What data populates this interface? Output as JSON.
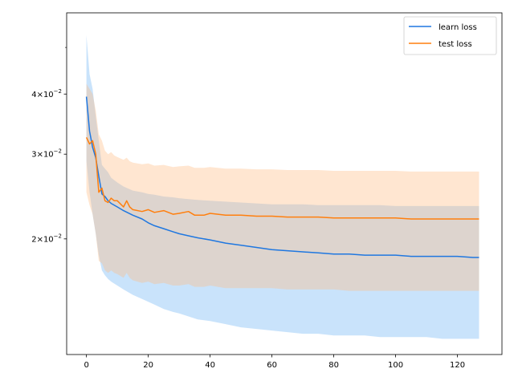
{
  "chart_data": {
    "type": "line",
    "title": "",
    "xlabel": "",
    "ylabel": "",
    "xlim": [
      -6.4,
      134.4
    ],
    "ylim": [
      0.0115,
      0.059
    ],
    "yscale": "log",
    "grid": false,
    "legend_position": "top-right",
    "x_ticks": [
      {
        "value": 0,
        "label": "0"
      },
      {
        "value": 20,
        "label": "20"
      },
      {
        "value": 40,
        "label": "40"
      },
      {
        "value": 60,
        "label": "60"
      },
      {
        "value": 80,
        "label": "80"
      },
      {
        "value": 100,
        "label": "100"
      },
      {
        "value": 120,
        "label": "120"
      }
    ],
    "y_ticks": [
      {
        "value": 0.02,
        "base": "2",
        "exp": "−2"
      },
      {
        "value": 0.03,
        "base": "3",
        "exp": "−2"
      },
      {
        "value": 0.04,
        "base": "4",
        "exp": "−2"
      }
    ],
    "y_minor_ticks": [
      0.05
    ],
    "series": [
      {
        "name": "learn loss",
        "color": "#1f77e0",
        "band_color": "#87c0f7",
        "x": [
          0,
          1,
          2,
          3,
          4,
          5,
          6,
          7,
          8,
          10,
          12,
          15,
          18,
          20,
          22,
          25,
          28,
          30,
          33,
          36,
          40,
          45,
          50,
          55,
          60,
          65,
          70,
          75,
          80,
          85,
          90,
          95,
          100,
          105,
          110,
          115,
          120,
          125,
          127
        ],
        "values": [
          0.0395,
          0.0335,
          0.031,
          0.0295,
          0.027,
          0.0248,
          0.0245,
          0.024,
          0.0237,
          0.0233,
          0.0229,
          0.0224,
          0.022,
          0.0216,
          0.0213,
          0.021,
          0.0207,
          0.0205,
          0.0203,
          0.0201,
          0.0199,
          0.0196,
          0.0194,
          0.0192,
          0.019,
          0.0189,
          0.0188,
          0.0187,
          0.0186,
          0.0186,
          0.0185,
          0.0185,
          0.0185,
          0.0184,
          0.0184,
          0.0184,
          0.0184,
          0.0183,
          0.0183
        ],
        "upper": [
          0.053,
          0.044,
          0.041,
          0.036,
          0.032,
          0.0285,
          0.028,
          0.0275,
          0.0268,
          0.0262,
          0.0257,
          0.0252,
          0.025,
          0.0248,
          0.0247,
          0.0245,
          0.0244,
          0.0243,
          0.0242,
          0.0241,
          0.024,
          0.0239,
          0.0238,
          0.0237,
          0.0236,
          0.0236,
          0.0236,
          0.0235,
          0.0235,
          0.0235,
          0.0235,
          0.0235,
          0.0234,
          0.0234,
          0.0234,
          0.0234,
          0.0234,
          0.0234,
          0.0234
        ],
        "lower": [
          0.029,
          0.025,
          0.0225,
          0.0205,
          0.0185,
          0.0172,
          0.0168,
          0.0165,
          0.0163,
          0.016,
          0.0157,
          0.0153,
          0.015,
          0.0148,
          0.0146,
          0.0143,
          0.0141,
          0.014,
          0.0138,
          0.0136,
          0.0135,
          0.0133,
          0.0131,
          0.013,
          0.0129,
          0.0128,
          0.0127,
          0.0127,
          0.0126,
          0.0126,
          0.0126,
          0.0125,
          0.0125,
          0.0125,
          0.0125,
          0.0124,
          0.0124,
          0.0124,
          0.0124
        ]
      },
      {
        "name": "test loss",
        "color": "#ff7f0e",
        "band_color": "#ffbe86",
        "x": [
          0,
          1,
          2,
          3,
          4,
          5,
          6,
          7,
          8,
          9,
          10,
          12,
          13,
          14,
          15,
          18,
          20,
          22,
          25,
          28,
          30,
          33,
          35,
          38,
          40,
          45,
          50,
          55,
          60,
          65,
          70,
          75,
          80,
          85,
          90,
          95,
          100,
          105,
          110,
          115,
          120,
          125,
          127
        ],
        "values": [
          0.0325,
          0.0315,
          0.032,
          0.03,
          0.025,
          0.0255,
          0.024,
          0.0238,
          0.0243,
          0.024,
          0.024,
          0.0233,
          0.024,
          0.0233,
          0.023,
          0.0228,
          0.023,
          0.0227,
          0.0229,
          0.0225,
          0.0226,
          0.0228,
          0.0224,
          0.0224,
          0.0226,
          0.0224,
          0.0224,
          0.0223,
          0.0223,
          0.0222,
          0.0222,
          0.0222,
          0.0221,
          0.0221,
          0.0221,
          0.0221,
          0.0221,
          0.022,
          0.022,
          0.022,
          0.022,
          0.022,
          0.022
        ],
        "upper": [
          0.042,
          0.041,
          0.04,
          0.037,
          0.033,
          0.032,
          0.0305,
          0.03,
          0.0303,
          0.0298,
          0.0296,
          0.0292,
          0.0295,
          0.029,
          0.0288,
          0.0286,
          0.0287,
          0.0284,
          0.0285,
          0.0282,
          0.0283,
          0.0284,
          0.0281,
          0.0281,
          0.0282,
          0.028,
          0.028,
          0.0279,
          0.0279,
          0.0278,
          0.0278,
          0.0278,
          0.0277,
          0.0277,
          0.0277,
          0.0277,
          0.0277,
          0.0276,
          0.0276,
          0.0276,
          0.0276,
          0.0276,
          0.0276
        ],
        "lower": [
          0.025,
          0.0235,
          0.0225,
          0.0205,
          0.018,
          0.0178,
          0.0172,
          0.017,
          0.0172,
          0.017,
          0.0169,
          0.0166,
          0.017,
          0.0166,
          0.0164,
          0.0162,
          0.0163,
          0.0161,
          0.0162,
          0.016,
          0.016,
          0.0161,
          0.0159,
          0.0159,
          0.016,
          0.0158,
          0.0158,
          0.0158,
          0.0158,
          0.0157,
          0.0157,
          0.0157,
          0.0157,
          0.0156,
          0.0156,
          0.0156,
          0.0156,
          0.0156,
          0.0156,
          0.0156,
          0.0156,
          0.0156,
          0.0156
        ]
      }
    ]
  }
}
